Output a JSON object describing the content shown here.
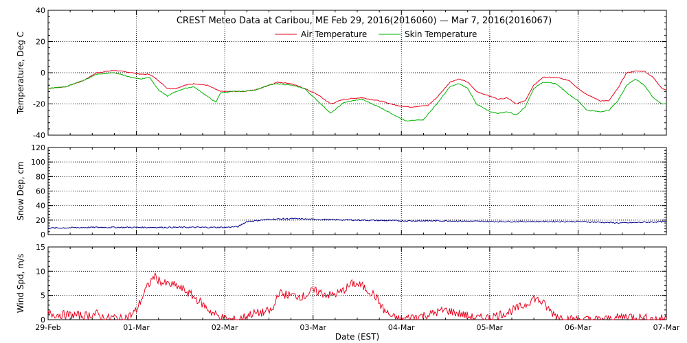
{
  "title": "CREST Meteo Data at Caribou, ME   Feb 29, 2016(2016060) — Mar  7, 2016(2016067)",
  "xlabel": "Date (EST)",
  "x_tick_labels": [
    "29-Feb",
    "01-Mar",
    "02-Mar",
    "03-Mar",
    "04-Mar",
    "05-Mar",
    "06-Mar",
    "07-Mar"
  ],
  "colors": {
    "air": "#e8001c",
    "skin": "#00b300",
    "snow": "#00008b",
    "wind": "#e8001c",
    "grid": "#000000"
  },
  "chart_data": [
    {
      "type": "line",
      "x_unit": "days since 29-Feb",
      "ylabel": "Temperature, Deg C",
      "ylim": [
        -40,
        40
      ],
      "yticks": [
        -40,
        -20,
        0,
        20,
        40
      ],
      "legend": "top-center",
      "series": [
        {
          "name": "Air Temperature",
          "points": [
            [
              0,
              -10
            ],
            [
              0.2,
              -9
            ],
            [
              0.4,
              -5
            ],
            [
              0.55,
              0
            ],
            [
              0.75,
              1.5
            ],
            [
              0.95,
              0
            ],
            [
              1.05,
              -1
            ],
            [
              1.15,
              -1
            ],
            [
              1.25,
              -5
            ],
            [
              1.35,
              -10
            ],
            [
              1.45,
              -10
            ],
            [
              1.55,
              -8
            ],
            [
              1.65,
              -7
            ],
            [
              1.8,
              -8
            ],
            [
              1.95,
              -12
            ],
            [
              2.1,
              -12
            ],
            [
              2.2,
              -12
            ],
            [
              2.35,
              -11
            ],
            [
              2.5,
              -8
            ],
            [
              2.6,
              -6
            ],
            [
              2.75,
              -7
            ],
            [
              2.9,
              -10
            ],
            [
              3.05,
              -14
            ],
            [
              3.2,
              -20
            ],
            [
              3.35,
              -17
            ],
            [
              3.55,
              -16
            ],
            [
              3.75,
              -18
            ],
            [
              3.95,
              -21
            ],
            [
              4.1,
              -22
            ],
            [
              4.3,
              -21
            ],
            [
              4.4,
              -16
            ],
            [
              4.55,
              -6
            ],
            [
              4.65,
              -4
            ],
            [
              4.75,
              -6
            ],
            [
              4.85,
              -12
            ],
            [
              5.0,
              -15
            ],
            [
              5.1,
              -17
            ],
            [
              5.2,
              -16
            ],
            [
              5.3,
              -20
            ],
            [
              5.4,
              -18
            ],
            [
              5.5,
              -8
            ],
            [
              5.6,
              -3
            ],
            [
              5.75,
              -3
            ],
            [
              5.9,
              -5
            ],
            [
              6.0,
              -10
            ],
            [
              6.1,
              -14
            ],
            [
              6.25,
              -18
            ],
            [
              6.35,
              -18
            ],
            [
              6.45,
              -10
            ],
            [
              6.55,
              0
            ],
            [
              6.65,
              1
            ],
            [
              6.75,
              1
            ],
            [
              6.85,
              -3
            ],
            [
              6.95,
              -10
            ],
            [
              7.0,
              -11
            ]
          ]
        },
        {
          "name": "Skin Temperature",
          "points": [
            [
              0,
              -10
            ],
            [
              0.2,
              -9
            ],
            [
              0.4,
              -5
            ],
            [
              0.55,
              -1
            ],
            [
              0.75,
              0
            ],
            [
              0.95,
              -3
            ],
            [
              1.05,
              -4
            ],
            [
              1.15,
              -3
            ],
            [
              1.25,
              -11
            ],
            [
              1.35,
              -15
            ],
            [
              1.45,
              -12
            ],
            [
              1.55,
              -10
            ],
            [
              1.65,
              -9
            ],
            [
              1.8,
              -15
            ],
            [
              1.9,
              -19
            ],
            [
              1.95,
              -13
            ],
            [
              2.1,
              -12
            ],
            [
              2.2,
              -12
            ],
            [
              2.35,
              -11
            ],
            [
              2.5,
              -8
            ],
            [
              2.6,
              -7
            ],
            [
              2.75,
              -8
            ],
            [
              2.9,
              -10
            ],
            [
              3.05,
              -18
            ],
            [
              3.2,
              -26
            ],
            [
              3.35,
              -19
            ],
            [
              3.55,
              -17
            ],
            [
              3.75,
              -22
            ],
            [
              3.95,
              -28
            ],
            [
              4.05,
              -31
            ],
            [
              4.25,
              -30
            ],
            [
              4.4,
              -20
            ],
            [
              4.55,
              -9
            ],
            [
              4.65,
              -7
            ],
            [
              4.75,
              -10
            ],
            [
              4.85,
              -20
            ],
            [
              5.0,
              -25
            ],
            [
              5.1,
              -26
            ],
            [
              5.2,
              -25
            ],
            [
              5.3,
              -27
            ],
            [
              5.4,
              -22
            ],
            [
              5.5,
              -10
            ],
            [
              5.6,
              -6
            ],
            [
              5.75,
              -7
            ],
            [
              5.9,
              -14
            ],
            [
              6.0,
              -18
            ],
            [
              6.1,
              -24
            ],
            [
              6.25,
              -25
            ],
            [
              6.35,
              -24
            ],
            [
              6.45,
              -18
            ],
            [
              6.55,
              -8
            ],
            [
              6.65,
              -4
            ],
            [
              6.75,
              -8
            ],
            [
              6.85,
              -16
            ],
            [
              6.95,
              -20
            ],
            [
              7.0,
              -20
            ]
          ]
        }
      ]
    },
    {
      "type": "line",
      "x_unit": "days since 29-Feb",
      "ylabel": "Snow Dep, cm",
      "ylim": [
        0,
        120
      ],
      "yticks": [
        0,
        20,
        40,
        60,
        80,
        100,
        120
      ],
      "series": [
        {
          "points": [
            [
              0,
              9
            ],
            [
              0.5,
              10
            ],
            [
              1.0,
              10
            ],
            [
              1.5,
              10
            ],
            [
              2.0,
              10
            ],
            [
              2.15,
              11
            ],
            [
              2.25,
              18
            ],
            [
              2.5,
              21
            ],
            [
              2.75,
              22
            ],
            [
              3.0,
              21
            ],
            [
              3.5,
              20
            ],
            [
              4.0,
              19
            ],
            [
              4.5,
              19
            ],
            [
              5.0,
              18
            ],
            [
              5.5,
              18
            ],
            [
              6.0,
              18
            ],
            [
              6.5,
              16
            ],
            [
              7.0,
              18
            ]
          ]
        }
      ]
    },
    {
      "type": "line",
      "x_unit": "days since 29-Feb",
      "ylabel": "Wind Spd, m/s",
      "ylim": [
        0,
        15
      ],
      "yticks": [
        0,
        5,
        10,
        15
      ],
      "series": [
        {
          "points": [
            [
              0,
              1.2
            ],
            [
              0.2,
              1.0
            ],
            [
              0.4,
              0.8
            ],
            [
              0.55,
              1.2
            ],
            [
              0.65,
              0.2
            ],
            [
              0.75,
              0.5
            ],
            [
              0.8,
              0
            ],
            [
              0.95,
              1
            ],
            [
              1.0,
              2
            ],
            [
              1.1,
              6
            ],
            [
              1.2,
              9
            ],
            [
              1.3,
              7.5
            ],
            [
              1.45,
              7
            ],
            [
              1.55,
              6
            ],
            [
              1.7,
              4
            ],
            [
              1.85,
              1.5
            ],
            [
              1.95,
              0.5
            ],
            [
              2.05,
              0
            ],
            [
              2.15,
              0
            ],
            [
              2.3,
              1.2
            ],
            [
              2.45,
              1.5
            ],
            [
              2.55,
              2
            ],
            [
              2.6,
              5.5
            ],
            [
              2.75,
              5
            ],
            [
              2.9,
              4.8
            ],
            [
              3.0,
              6
            ],
            [
              3.1,
              5.5
            ],
            [
              3.2,
              5
            ],
            [
              3.3,
              5.5
            ],
            [
              3.45,
              7.5
            ],
            [
              3.55,
              7
            ],
            [
              3.7,
              5
            ],
            [
              3.8,
              2
            ],
            [
              3.9,
              0.5
            ],
            [
              4.0,
              0
            ],
            [
              4.1,
              0.5
            ],
            [
              4.3,
              1
            ],
            [
              4.5,
              2
            ],
            [
              4.6,
              1.5
            ],
            [
              4.7,
              1
            ],
            [
              4.8,
              0.5
            ],
            [
              4.9,
              0.3
            ],
            [
              5.0,
              0.5
            ],
            [
              5.2,
              1.5
            ],
            [
              5.4,
              3
            ],
            [
              5.5,
              4.5
            ],
            [
              5.6,
              3.5
            ],
            [
              5.7,
              1.5
            ],
            [
              5.8,
              0.5
            ],
            [
              5.95,
              0
            ],
            [
              6.2,
              0
            ],
            [
              6.4,
              0.2
            ],
            [
              6.55,
              0.8
            ],
            [
              6.7,
              0.5
            ],
            [
              6.85,
              0.1
            ],
            [
              7.0,
              0.3
            ]
          ]
        }
      ]
    }
  ]
}
